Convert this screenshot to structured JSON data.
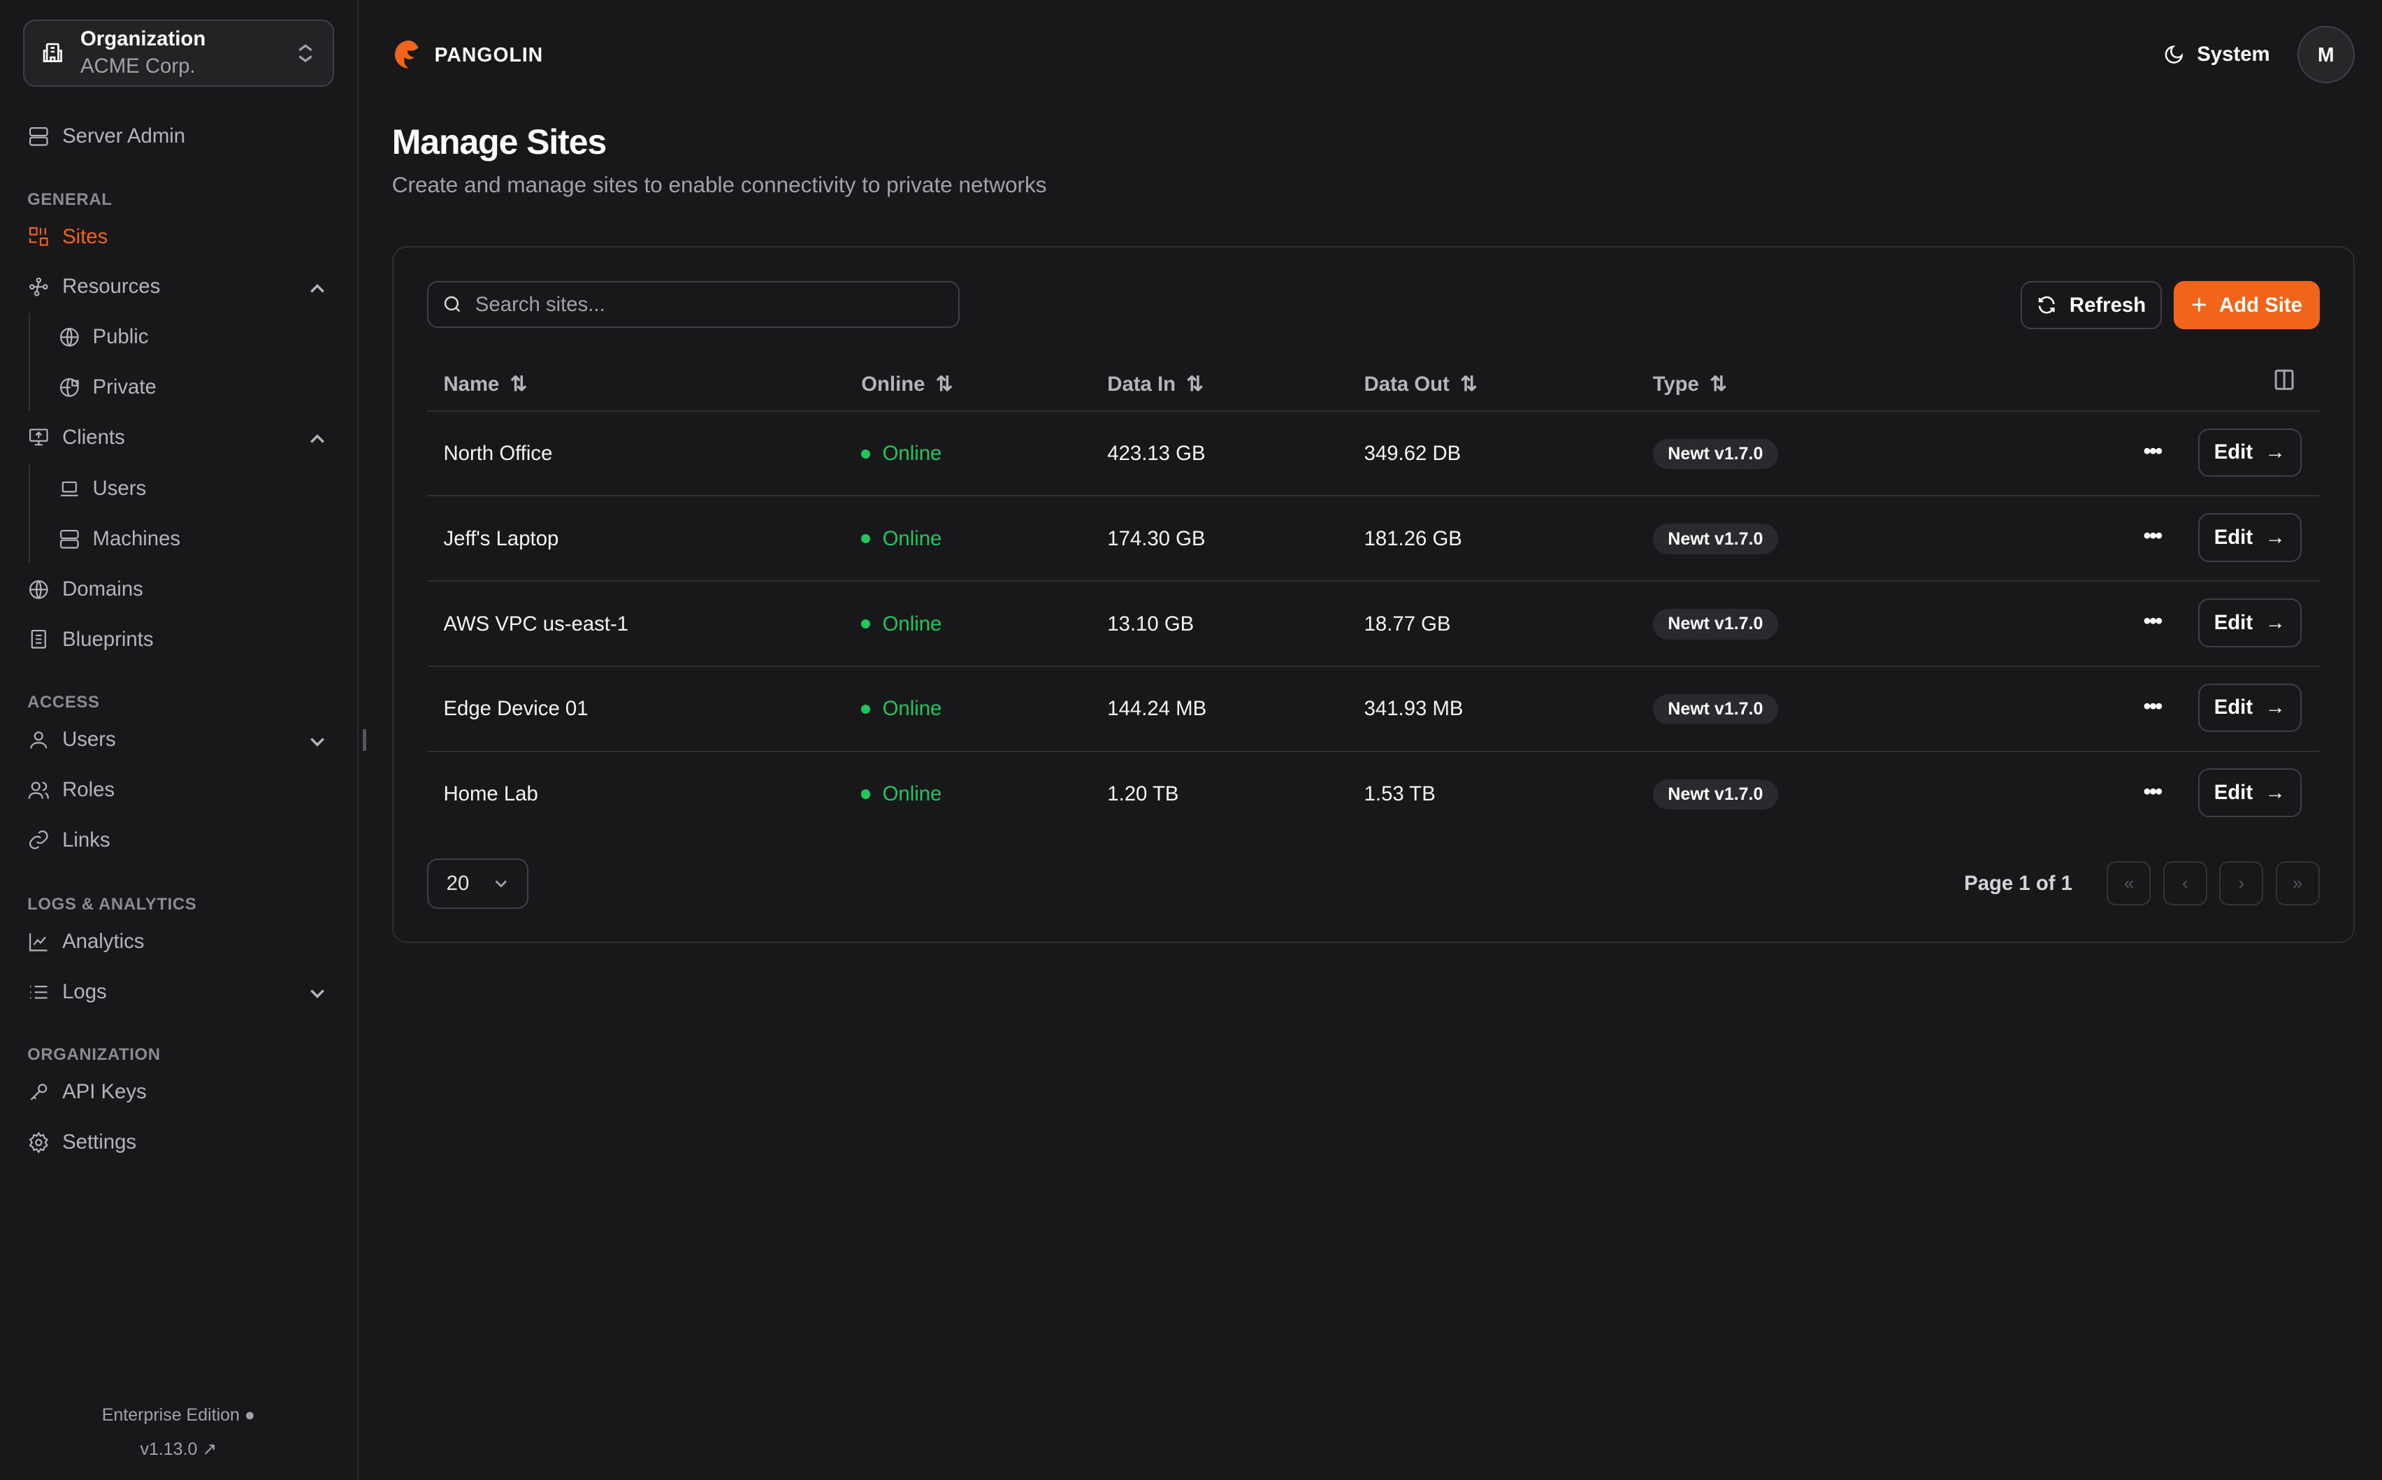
{
  "sidebar": {
    "org_label": "Organization",
    "org_name": "ACME Corp.",
    "server_admin": "Server Admin",
    "sections": [
      "GENERAL",
      "ACCESS",
      "LOGS & ANALYTICS",
      "ORGANIZATION"
    ],
    "items": {
      "sites": "Sites",
      "resources": "Resources",
      "public": "Public",
      "private": "Private",
      "clients": "Clients",
      "users": "Users",
      "machines": "Machines",
      "domains": "Domains",
      "blueprints": "Blueprints",
      "access_users": "Users",
      "roles": "Roles",
      "links": "Links",
      "analytics": "Analytics",
      "logs": "Logs",
      "api_keys": "API Keys",
      "settings": "Settings"
    },
    "edition": "Enterprise Edition",
    "version": "v1.13.0"
  },
  "header": {
    "brand": "PANGOLIN",
    "theme": "System",
    "avatar": "M"
  },
  "page": {
    "title": "Manage Sites",
    "subtitle": "Create and manage sites to enable connectivity to private networks"
  },
  "toolbar": {
    "search_placeholder": "Search sites...",
    "refresh": "Refresh",
    "add": "Add Site"
  },
  "table": {
    "columns": [
      "Name",
      "Online",
      "Data In",
      "Data Out",
      "Type"
    ],
    "rows": [
      {
        "name": "North Office",
        "status": "Online",
        "in": "423.13 GB",
        "out": "349.62 DB",
        "type": "Newt v1.7.0"
      },
      {
        "name": "Jeff's Laptop",
        "status": "Online",
        "in": "174.30 GB",
        "out": "181.26 GB",
        "type": "Newt v1.7.0"
      },
      {
        "name": "AWS VPC us-east-1",
        "status": "Online",
        "in": "13.10 GB",
        "out": "18.77 GB",
        "type": "Newt v1.7.0"
      },
      {
        "name": "Edge Device 01",
        "status": "Online",
        "in": "144.24 MB",
        "out": "341.93 MB",
        "type": "Newt v1.7.0"
      },
      {
        "name": "Home Lab",
        "status": "Online",
        "in": "1.20 TB",
        "out": "1.53 TB",
        "type": "Newt v1.7.0"
      }
    ],
    "edit_label": "Edit",
    "page_size": "20",
    "page_info": "Page 1 of 1"
  },
  "colors": {
    "accent": "#f26419",
    "online": "#22c55e",
    "background": "#18181b"
  }
}
